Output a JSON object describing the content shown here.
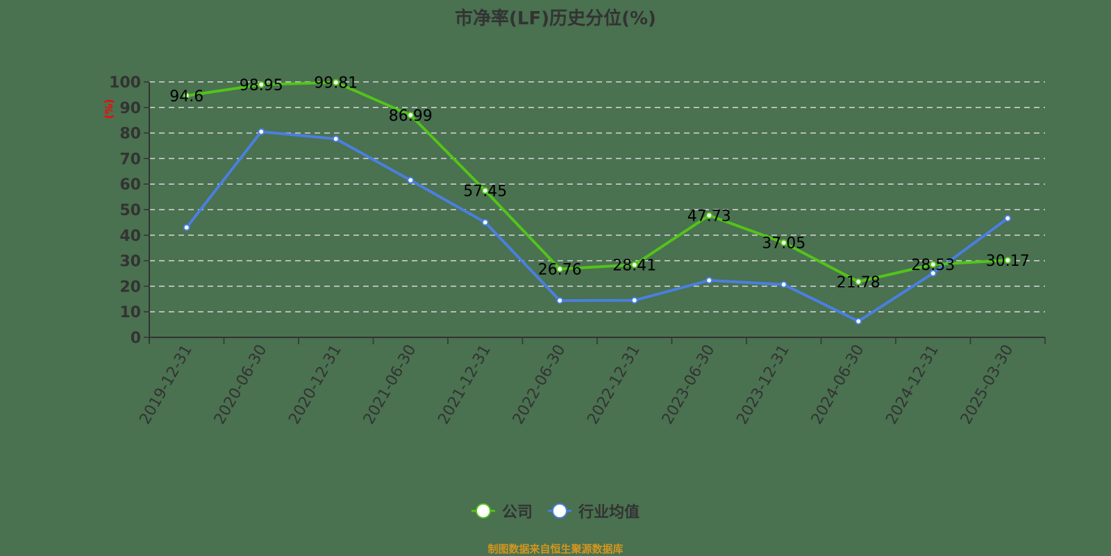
{
  "title": "市净率(LF)历史分位(%)",
  "source_note": "制图数据来自恒生聚源数据库",
  "colors": {
    "background": "#4a7150",
    "company": "#52c41a",
    "industry": "#4a7fe0",
    "axis": "#333333",
    "grid": "#d9d9d9",
    "ylabel": "#ff0000",
    "source": "#d4961f"
  },
  "legend": [
    {
      "name": "公司",
      "color": "#52c41a"
    },
    {
      "name": "行业均值",
      "color": "#4a7fe0"
    }
  ],
  "chart_data": {
    "type": "line",
    "title": "市净率(LF)历史分位(%)",
    "xlabel": "",
    "ylabel": "(%)",
    "ylim": [
      0,
      100
    ],
    "yticks": [
      0,
      10,
      20,
      30,
      40,
      50,
      60,
      70,
      80,
      90,
      100
    ],
    "grid": true,
    "legend_position": "bottom",
    "categories": [
      "2019-12-31",
      "2020-06-30",
      "2020-12-31",
      "2021-06-30",
      "2021-12-31",
      "2022-06-30",
      "2022-12-31",
      "2023-06-30",
      "2023-12-31",
      "2024-06-30",
      "2024-12-31",
      "2025-03-30"
    ],
    "series": [
      {
        "name": "公司",
        "color": "#52c41a",
        "show_labels": true,
        "values": [
          94.6,
          98.95,
          99.81,
          86.99,
          57.45,
          26.76,
          28.41,
          47.73,
          37.05,
          21.78,
          28.53,
          30.17
        ]
      },
      {
        "name": "行业均值",
        "color": "#4a7fe0",
        "show_labels": false,
        "values": [
          43.0,
          80.5,
          77.7,
          61.5,
          45.0,
          14.4,
          14.5,
          22.3,
          20.7,
          6.3,
          25.1,
          46.6
        ]
      }
    ]
  }
}
